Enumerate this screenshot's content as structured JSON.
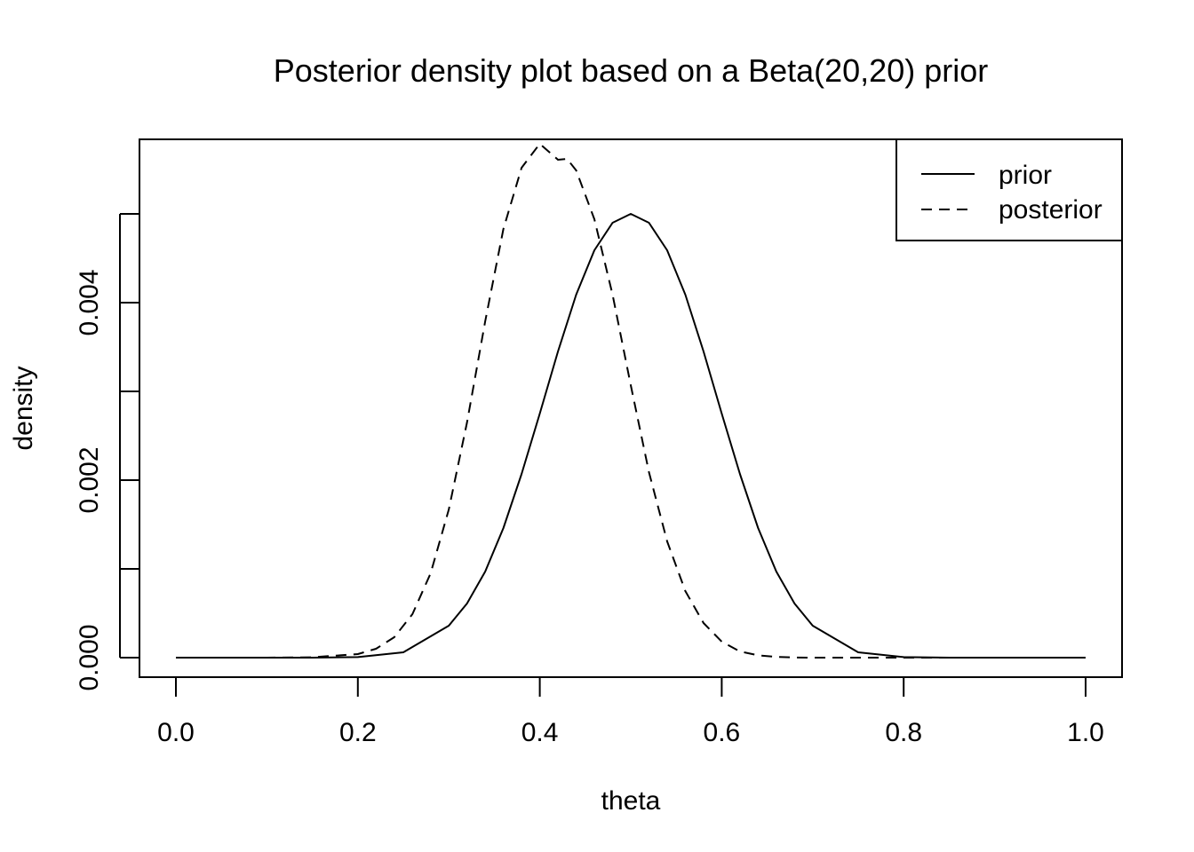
{
  "chart_data": {
    "type": "line",
    "title": "Posterior density plot based on a Beta(20,20) prior",
    "xlabel": "theta",
    "ylabel": "density",
    "xlim": [
      0.0,
      1.0
    ],
    "ylim": [
      0.0,
      0.0056
    ],
    "x_ticks": [
      "0.0",
      "0.2",
      "0.4",
      "0.6",
      "0.8",
      "1.0"
    ],
    "y_ticks": [
      "0.000",
      "0.002",
      "0.004"
    ],
    "grid": false,
    "legend_position": "top-right",
    "series": [
      {
        "name": "prior",
        "line_style": "solid",
        "x": [
          0.0,
          0.05,
          0.1,
          0.15,
          0.2,
          0.25,
          0.3,
          0.32,
          0.34,
          0.36,
          0.38,
          0.4,
          0.42,
          0.44,
          0.46,
          0.48,
          0.5,
          0.52,
          0.54,
          0.56,
          0.58,
          0.6,
          0.62,
          0.64,
          0.66,
          0.68,
          0.7,
          0.75,
          0.8,
          0.85,
          0.9,
          0.95,
          1.0
        ],
        "y": [
          0.0,
          0.0,
          0.0,
          0.0,
          6e-06,
          6e-05,
          0.00036,
          0.00061,
          0.00097,
          0.00146,
          0.00207,
          0.00275,
          0.00345,
          0.00409,
          0.00459,
          0.0049,
          0.005,
          0.0049,
          0.00459,
          0.00409,
          0.00345,
          0.00275,
          0.00207,
          0.00146,
          0.00097,
          0.00061,
          0.00036,
          6e-05,
          6e-06,
          0.0,
          0.0,
          0.0,
          0.0
        ]
      },
      {
        "name": "posterior",
        "line_style": "dashed",
        "x": [
          0.0,
          0.05,
          0.1,
          0.15,
          0.2,
          0.22,
          0.24,
          0.26,
          0.28,
          0.3,
          0.32,
          0.34,
          0.36,
          0.38,
          0.4,
          0.42,
          0.43,
          0.44,
          0.46,
          0.48,
          0.5,
          0.52,
          0.54,
          0.56,
          0.58,
          0.6,
          0.62,
          0.64,
          0.66,
          0.68,
          0.7,
          0.75,
          0.8,
          0.85,
          0.9,
          0.95,
          1.0
        ],
        "y": [
          0.0,
          0.0,
          0.0,
          4e-06,
          4e-05,
          0.0001,
          0.00023,
          0.00049,
          0.00095,
          0.00167,
          0.00265,
          0.00379,
          0.00483,
          0.00552,
          0.00579,
          0.00561,
          0.00562,
          0.00549,
          0.00494,
          0.00409,
          0.00307,
          0.00209,
          0.00131,
          0.00075,
          0.00039,
          0.00018,
          7e-05,
          2.6e-05,
          8e-06,
          2e-06,
          0.0,
          0.0,
          0.0,
          0.0,
          0.0,
          0.0,
          0.0
        ]
      }
    ]
  }
}
